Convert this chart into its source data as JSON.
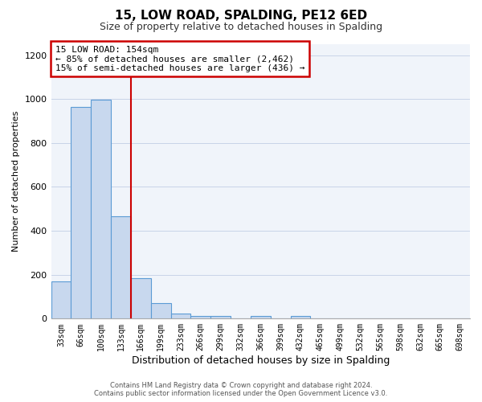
{
  "title": "15, LOW ROAD, SPALDING, PE12 6ED",
  "subtitle": "Size of property relative to detached houses in Spalding",
  "xlabel": "Distribution of detached houses by size in Spalding",
  "ylabel": "Number of detached properties",
  "bar_labels": [
    "33sqm",
    "66sqm",
    "100sqm",
    "133sqm",
    "166sqm",
    "199sqm",
    "233sqm",
    "266sqm",
    "299sqm",
    "332sqm",
    "366sqm",
    "399sqm",
    "432sqm",
    "465sqm",
    "499sqm",
    "532sqm",
    "565sqm",
    "598sqm",
    "632sqm",
    "665sqm",
    "698sqm"
  ],
  "bar_values": [
    170,
    965,
    998,
    465,
    185,
    72,
    25,
    14,
    12,
    0,
    12,
    0,
    12,
    0,
    0,
    0,
    0,
    0,
    0,
    0,
    0
  ],
  "bar_color": "#c8d8ee",
  "bar_edge_color": "#5b9bd5",
  "property_line_color": "#cc0000",
  "property_line_index": 3.5,
  "annotation_title": "15 LOW ROAD: 154sqm",
  "annotation_line1": "← 85% of detached houses are smaller (2,462)",
  "annotation_line2": "15% of semi-detached houses are larger (436) →",
  "annotation_box_color": "#cc0000",
  "ylim": [
    0,
    1250
  ],
  "yticks": [
    0,
    200,
    400,
    600,
    800,
    1000,
    1200
  ],
  "footer_line1": "Contains HM Land Registry data © Crown copyright and database right 2024.",
  "footer_line2": "Contains public sector information licensed under the Open Government Licence v3.0.",
  "bg_color": "#f0f4fa"
}
